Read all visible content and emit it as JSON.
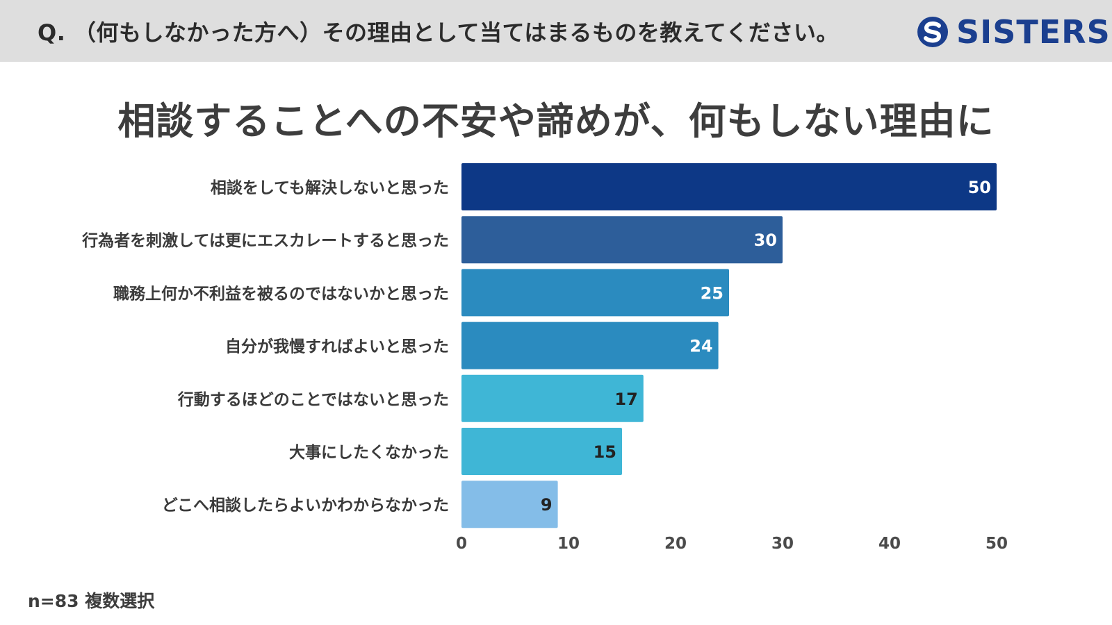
{
  "header": {
    "question": "Q. （何もしなかった方へ）その理由として当てはまるものを教えてください。",
    "logo_text": "SISTERS",
    "logo_icon": "sisters-s-logo-icon"
  },
  "colors": {
    "header_bg": "#dedede",
    "logo": "#1b3f8f",
    "title_text": "#3d3d3d"
  },
  "chart_data": {
    "type": "bar",
    "orientation": "horizontal",
    "title": "相談することへの不安や諦めが、何もしない理由に",
    "categories": [
      "相談をしても解決しないと思った",
      "行為者を刺激しては更にエスカレートすると思った",
      "職務上何か不利益を被るのではないかと思った",
      "自分が我慢すればよいと思った",
      "行動するほどのことではないと思った",
      "大事にしたくなかった",
      "どこへ相談したらよいかわからなかった"
    ],
    "values": [
      50,
      30,
      25,
      24,
      17,
      15,
      9
    ],
    "bar_colors": [
      "#0d3886",
      "#2d5e9a",
      "#2b8bbf",
      "#2b8bbf",
      "#3fb6d6",
      "#3fb6d6",
      "#84bde8"
    ],
    "label_colors": [
      "#ffffff",
      "#ffffff",
      "#ffffff",
      "#ffffff",
      "#222222",
      "#222222",
      "#222222"
    ],
    "xlim": [
      0,
      50
    ],
    "x_ticks": [
      "0",
      "10",
      "20",
      "30",
      "40",
      "50"
    ],
    "xlabel": "",
    "ylabel": "",
    "grid": false,
    "legend": "none",
    "data_labels": true
  },
  "footer": {
    "note": "n=83 複数選択"
  }
}
